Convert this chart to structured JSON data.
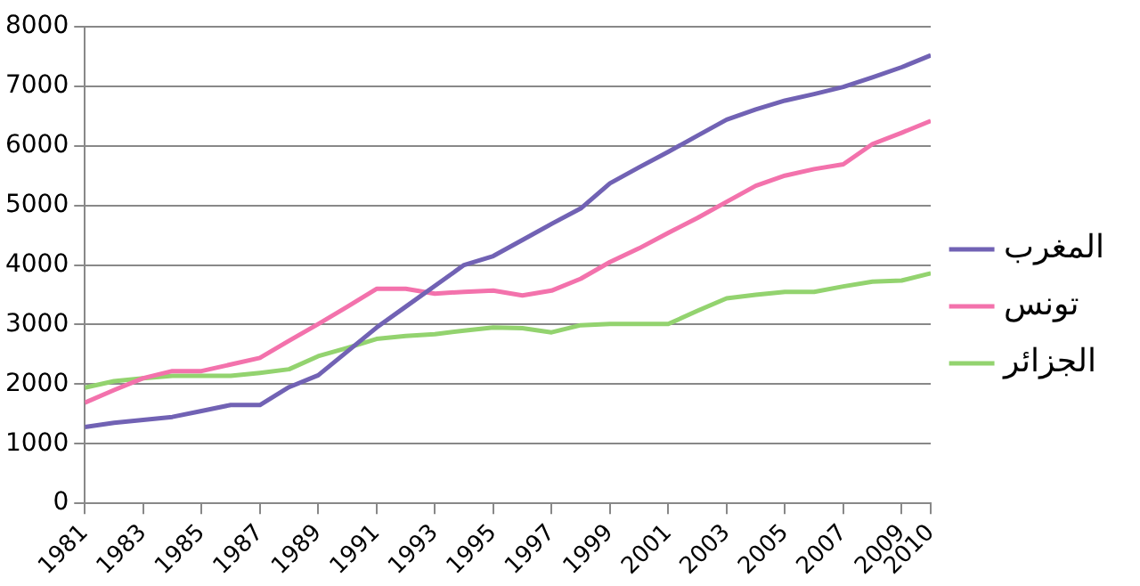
{
  "chart_data": {
    "type": "line",
    "x": [
      1981,
      1982,
      1983,
      1984,
      1985,
      1986,
      1987,
      1988,
      1989,
      1990,
      1991,
      1992,
      1993,
      1994,
      1995,
      1996,
      1997,
      1998,
      1999,
      2000,
      2001,
      2002,
      2003,
      2004,
      2005,
      2006,
      2007,
      2008,
      2009,
      2010
    ],
    "series": [
      {
        "name": "المغرب",
        "color": "#7162b4",
        "values": [
          1280,
          1350,
          1400,
          1450,
          1550,
          1650,
          1650,
          1950,
          2150,
          2550,
          2950,
          3300,
          3650,
          4000,
          4150,
          4420,
          4690,
          4950,
          5370,
          5640,
          5900,
          6170,
          6440,
          6610,
          6760,
          6870,
          6990,
          7150,
          7320,
          7520
        ]
      },
      {
        "name": "تونس",
        "color": "#f372ac",
        "values": [
          1690,
          1900,
          2100,
          2220,
          2220,
          2330,
          2440,
          2730,
          3010,
          3300,
          3600,
          3600,
          3520,
          3550,
          3570,
          3490,
          3570,
          3770,
          4050,
          4280,
          4540,
          4790,
          5060,
          5330,
          5500,
          5610,
          5690,
          6030,
          6220,
          6420
        ]
      },
      {
        "name": "الجزائر",
        "color": "#93d36f",
        "values": [
          1940,
          2050,
          2100,
          2140,
          2140,
          2140,
          2190,
          2250,
          2470,
          2610,
          2760,
          2810,
          2840,
          2900,
          2950,
          2940,
          2870,
          2990,
          3010,
          3010,
          3010,
          3230,
          3440,
          3500,
          3550,
          3550,
          3640,
          3720,
          3740,
          3860
        ]
      }
    ],
    "xlim": [
      1981,
      2010
    ],
    "xticks": [
      1981,
      1983,
      1985,
      1987,
      1989,
      1991,
      1993,
      1995,
      1997,
      1999,
      2001,
      2003,
      2005,
      2007,
      2009,
      2010
    ],
    "ylim": [
      0,
      8000
    ],
    "yticks": [
      0,
      1000,
      2000,
      3000,
      4000,
      5000,
      6000,
      7000,
      8000
    ],
    "grid": "y",
    "legend": "right",
    "marker": "none",
    "line_style": "solid"
  }
}
